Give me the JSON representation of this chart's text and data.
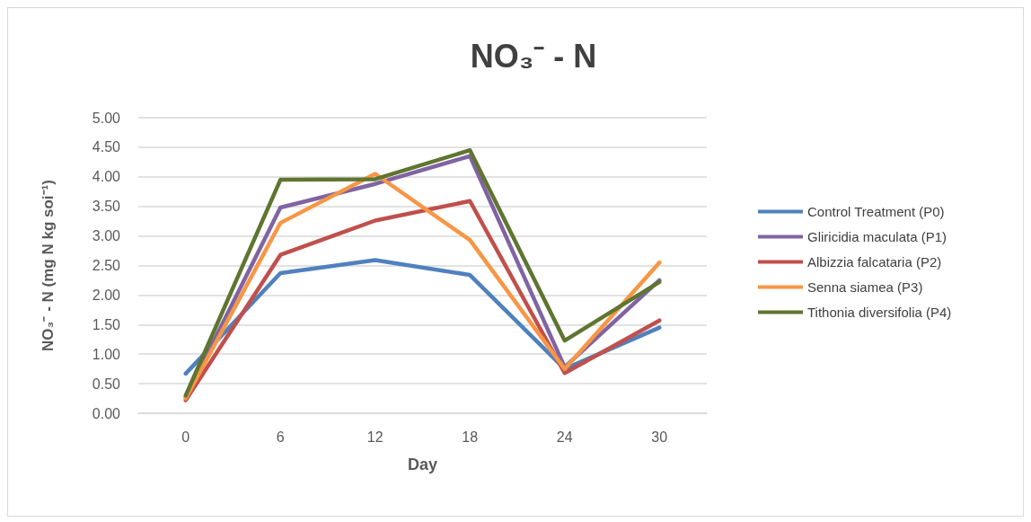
{
  "chart_data": {
    "type": "line",
    "title": "NO₃⁻ - N",
    "xlabel": "Day",
    "ylabel": "NO₃⁻ - N (mg N kg soi⁻¹)",
    "categories": [
      "0",
      "6",
      "12",
      "18",
      "24",
      "30"
    ],
    "series": [
      {
        "name": "Control Treatment (P0)",
        "color": "#4f81bd",
        "values": [
          0.67,
          2.37,
          2.59,
          2.34,
          0.75,
          1.45
        ]
      },
      {
        "name": "Gliricidia maculata (P1)",
        "color": "#8064a2",
        "values": [
          0.27,
          3.48,
          3.88,
          4.35,
          0.78,
          2.25
        ]
      },
      {
        "name": "Albizzia falcataria (P2)",
        "color": "#c0504d",
        "values": [
          0.22,
          2.68,
          3.26,
          3.59,
          0.68,
          1.57
        ]
      },
      {
        "name": "Senna siamea (P3)",
        "color": "#f79646",
        "values": [
          0.25,
          3.22,
          4.05,
          2.93,
          0.75,
          2.55
        ]
      },
      {
        "name": "Tithonia diversifolia (P4)",
        "color": "#5f7530",
        "values": [
          0.3,
          3.95,
          3.96,
          4.45,
          1.23,
          2.22
        ]
      }
    ],
    "ylim": [
      0,
      5
    ],
    "yticks": [
      {
        "value": 0,
        "label": "0.00"
      },
      {
        "value": 0.5,
        "label": "0.50"
      },
      {
        "value": 1,
        "label": "1.00"
      },
      {
        "value": 1.5,
        "label": "1.50"
      },
      {
        "value": 2,
        "label": "2.00"
      },
      {
        "value": 2.5,
        "label": "2.50"
      },
      {
        "value": 3,
        "label": "3.00"
      },
      {
        "value": 3.5,
        "label": "3.50"
      },
      {
        "value": 4,
        "label": "4.00"
      },
      {
        "value": 4.5,
        "label": "4.50"
      },
      {
        "value": 5,
        "label": "5.00"
      }
    ],
    "grid": "y",
    "legend": "right",
    "marker": "none",
    "line_style": "solid"
  }
}
